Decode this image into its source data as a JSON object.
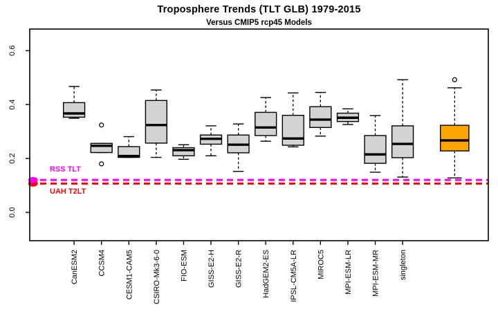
{
  "header": {
    "title": "Troposphere Trends (TLT GLB) 1979-2015",
    "subtitle": "Versus CMIP5 rcp45 Models"
  },
  "chart_data": {
    "type": "boxplot",
    "title": "Troposphere Trends (TLT GLB) 1979-2015",
    "subtitle": "Versus CMIP5 rcp45 Models",
    "xlabel": "",
    "ylabel": "",
    "grid": false,
    "legend": "none",
    "ylim": [
      -0.105,
      0.68
    ],
    "xlim": [
      -0.62,
      16.13
    ],
    "yticks": [
      0.0,
      0.2,
      0.4,
      0.6
    ],
    "ytick_labels": [
      "0.0",
      "0.2",
      "0.4",
      "0.6"
    ],
    "categories": [
      "CanESM2",
      "CCSM4",
      "CESM1-CAM5",
      "CSIRO-Mk3-6-0",
      "FIO-ESM",
      "GISS-E2-H",
      "GISS-E2-R",
      "HadGEM2-ES",
      "IPSL-CM5A-LR",
      "MIROC5",
      "MPI-ESM-LR",
      "MPI-ESM-MR",
      "singleton"
    ],
    "boxes": [
      {
        "label": "CanESM2",
        "position": 1,
        "whisker_low": 0.349,
        "q1": 0.353,
        "median": 0.367,
        "q3": 0.407,
        "whisker_high": 0.467,
        "outliers": [],
        "fill": "#D3D3D3",
        "width": 0.78
      },
      {
        "label": "CCSM4",
        "position": 2,
        "whisker_low": 0.222,
        "q1": 0.222,
        "median": 0.247,
        "q3": 0.256,
        "whisker_high": 0.256,
        "outliers": [
          0.324,
          0.18
        ],
        "fill": "#D3D3D3",
        "width": 0.78
      },
      {
        "label": "CESM1-CAM5",
        "position": 3,
        "whisker_low": 0.204,
        "q1": 0.204,
        "median": 0.209,
        "q3": 0.244,
        "whisker_high": 0.281,
        "outliers": [],
        "fill": "#D3D3D3",
        "width": 0.78
      },
      {
        "label": "CSIRO-Mk3-6-0",
        "position": 4,
        "whisker_low": 0.204,
        "q1": 0.257,
        "median": 0.324,
        "q3": 0.415,
        "whisker_high": 0.454,
        "outliers": [],
        "fill": "#D3D3D3",
        "width": 0.78
      },
      {
        "label": "FIO-ESM",
        "position": 5,
        "whisker_low": 0.197,
        "q1": 0.21,
        "median": 0.231,
        "q3": 0.24,
        "whisker_high": 0.251,
        "outliers": [],
        "fill": "#D3D3D3",
        "width": 0.78
      },
      {
        "label": "GISS-E2-H",
        "position": 6,
        "whisker_low": 0.21,
        "q1": 0.253,
        "median": 0.273,
        "q3": 0.287,
        "whisker_high": 0.321,
        "outliers": [],
        "fill": "#D3D3D3",
        "width": 0.78
      },
      {
        "label": "GISS-E2-R",
        "position": 7,
        "whisker_low": 0.152,
        "q1": 0.221,
        "median": 0.251,
        "q3": 0.287,
        "whisker_high": 0.328,
        "outliers": [],
        "fill": "#D3D3D3",
        "width": 0.78
      },
      {
        "label": "HadGEM2-ES",
        "position": 8,
        "whisker_low": 0.264,
        "q1": 0.285,
        "median": 0.315,
        "q3": 0.371,
        "whisker_high": 0.426,
        "outliers": [],
        "fill": "#D3D3D3",
        "width": 0.78
      },
      {
        "label": "IPSL-CM5A-LR",
        "position": 9,
        "whisker_low": 0.243,
        "q1": 0.249,
        "median": 0.274,
        "q3": 0.36,
        "whisker_high": 0.443,
        "outliers": [],
        "fill": "#D3D3D3",
        "width": 0.78
      },
      {
        "label": "MIROC5",
        "position": 10,
        "whisker_low": 0.283,
        "q1": 0.315,
        "median": 0.344,
        "q3": 0.392,
        "whisker_high": 0.445,
        "outliers": [],
        "fill": "#D3D3D3",
        "width": 0.78
      },
      {
        "label": "MPI-ESM-LR",
        "position": 11,
        "whisker_low": 0.326,
        "q1": 0.337,
        "median": 0.351,
        "q3": 0.368,
        "whisker_high": 0.384,
        "outliers": [],
        "fill": "#D3D3D3",
        "width": 0.78
      },
      {
        "label": "MPI-ESM-MR",
        "position": 12,
        "whisker_low": 0.149,
        "q1": 0.182,
        "median": 0.215,
        "q3": 0.285,
        "whisker_high": 0.359,
        "outliers": [],
        "fill": "#D3D3D3",
        "width": 0.78
      },
      {
        "label": "singleton",
        "position": 13,
        "whisker_low": 0.131,
        "q1": 0.203,
        "median": 0.254,
        "q3": 0.321,
        "whisker_high": 0.492,
        "outliers": [],
        "fill": "#D3D3D3",
        "width": 0.78
      },
      {
        "label": "",
        "position": 14.9,
        "whisker_low": 0.128,
        "q1": 0.228,
        "median": 0.267,
        "q3": 0.323,
        "whisker_high": 0.462,
        "outliers": [
          0.492
        ],
        "fill": "#FFA500",
        "width": 1.04
      }
    ],
    "reference_lines": [
      {
        "label": "RSS TLT",
        "value": 0.12,
        "color": "#FF00FF",
        "marker_position": -0.5
      },
      {
        "label": "UAH T2LT",
        "value": 0.107,
        "color": "#FF0000",
        "marker_position": -0.5
      }
    ],
    "colors": {
      "box_fill_default": "#D3D3D3",
      "box_fill_highlight": "#FFA500",
      "line_stroke": "#000000",
      "rss_line": "#FF00FF",
      "uah_line": "#FF0000"
    }
  }
}
